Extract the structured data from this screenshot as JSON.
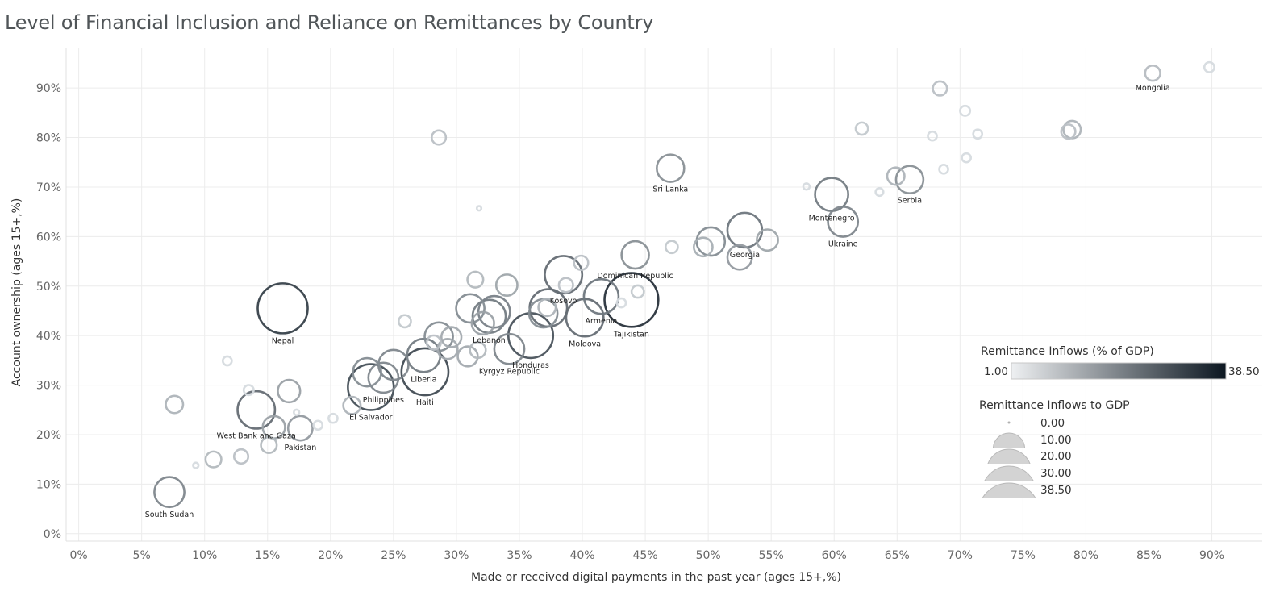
{
  "title": "Level of Financial Inclusion and Reliance on Remittances by Country",
  "chart_data": {
    "type": "scatter",
    "title": "Level of Financial Inclusion and Reliance on Remittances by Country",
    "xlabel": "Made or received digital payments in the past year (ages 15+,%)",
    "ylabel": "Account ownership (ages 15+,%)",
    "xlim": [
      -1,
      94
    ],
    "ylim": [
      -1.5,
      98
    ],
    "x_ticks": [
      "0%",
      "5%",
      "10%",
      "15%",
      "20%",
      "25%",
      "30%",
      "35%",
      "40%",
      "45%",
      "50%",
      "55%",
      "60%",
      "65%",
      "70%",
      "75%",
      "80%",
      "85%",
      "90%"
    ],
    "y_ticks": [
      "0%",
      "10%",
      "20%",
      "30%",
      "40%",
      "50%",
      "60%",
      "70%",
      "80%",
      "90%"
    ],
    "grid": true,
    "size_encoding": "Remittance Inflows (% of GDP)",
    "color_encoding": "Remittance Inflows (% of GDP)",
    "points": [
      {
        "label": "Mongolia",
        "x": 85.3,
        "y": 93.0,
        "r": 2.3
      },
      {
        "label": "Serbia",
        "x": 66.0,
        "y": 71.5,
        "r": 7.5
      },
      {
        "label": "Montenegro",
        "x": 59.8,
        "y": 68.5,
        "r": 11.0
      },
      {
        "label": "Ukraine",
        "x": 60.7,
        "y": 63.0,
        "r": 9.0
      },
      {
        "label": "Sri Lanka",
        "x": 47.0,
        "y": 73.8,
        "r": 7.5
      },
      {
        "label": "Georgia",
        "x": 52.9,
        "y": 61.3,
        "r": 12.0
      },
      {
        "label": "Dominican Republic",
        "x": 44.2,
        "y": 56.3,
        "r": 7.5
      },
      {
        "label": "Tajikistan",
        "x": 43.9,
        "y": 47.2,
        "r": 29.0
      },
      {
        "label": "Kosovo",
        "x": 38.5,
        "y": 52.3,
        "r": 14.0
      },
      {
        "label": "Armenia",
        "x": 41.5,
        "y": 47.9,
        "r": 12.0
      },
      {
        "label": "Moldova",
        "x": 40.2,
        "y": 43.6,
        "r": 14.0
      },
      {
        "label": "Honduras",
        "x": 35.9,
        "y": 40.0,
        "r": 20.0
      },
      {
        "label": "Lebanon",
        "x": 32.6,
        "y": 43.9,
        "r": 11.0
      },
      {
        "label": "Kyrgyz Republic",
        "x": 34.2,
        "y": 37.3,
        "r": 9.0
      },
      {
        "label": "Nepal",
        "x": 16.2,
        "y": 45.5,
        "r": 25.0
      },
      {
        "label": "Liberia",
        "x": 27.4,
        "y": 36.0,
        "r": 11.0
      },
      {
        "label": "Haiti",
        "x": 27.5,
        "y": 32.7,
        "r": 22.0
      },
      {
        "label": "Philippines",
        "x": 24.2,
        "y": 31.5,
        "r": 9.0
      },
      {
        "label": "El Salvador",
        "x": 23.2,
        "y": 29.6,
        "r": 21.0
      },
      {
        "label": "West Bank and Gaza",
        "x": 14.1,
        "y": 25.0,
        "r": 14.0
      },
      {
        "label": "Pakistan",
        "x": 17.6,
        "y": 21.3,
        "r": 6.0
      },
      {
        "label": "South Sudan",
        "x": 7.2,
        "y": 8.4,
        "r": 9.0
      },
      {
        "label": "",
        "x": 89.8,
        "y": 94.2,
        "r": 1.0
      },
      {
        "label": "",
        "x": 68.4,
        "y": 89.9,
        "r": 2.0
      },
      {
        "label": "",
        "x": 70.4,
        "y": 85.4,
        "r": 1.0
      },
      {
        "label": "",
        "x": 78.9,
        "y": 81.6,
        "r": 3.0
      },
      {
        "label": "",
        "x": 78.6,
        "y": 81.2,
        "r": 2.0
      },
      {
        "label": "",
        "x": 71.4,
        "y": 80.7,
        "r": 0.8
      },
      {
        "label": "",
        "x": 67.8,
        "y": 80.3,
        "r": 0.8
      },
      {
        "label": "",
        "x": 62.2,
        "y": 81.8,
        "r": 1.5
      },
      {
        "label": "",
        "x": 70.5,
        "y": 75.9,
        "r": 0.8
      },
      {
        "label": "",
        "x": 68.7,
        "y": 73.6,
        "r": 0.8
      },
      {
        "label": "",
        "x": 64.9,
        "y": 72.2,
        "r": 3.0
      },
      {
        "label": "",
        "x": 63.6,
        "y": 69.0,
        "r": 0.6
      },
      {
        "label": "",
        "x": 57.8,
        "y": 70.1,
        "r": 0.4
      },
      {
        "label": "",
        "x": 54.7,
        "y": 59.3,
        "r": 4.5
      },
      {
        "label": "",
        "x": 50.2,
        "y": 59.0,
        "r": 8.0
      },
      {
        "label": "",
        "x": 49.6,
        "y": 57.9,
        "r": 3.5
      },
      {
        "label": "",
        "x": 52.5,
        "y": 55.8,
        "r": 6.0
      },
      {
        "label": "",
        "x": 47.1,
        "y": 57.9,
        "r": 1.5
      },
      {
        "label": "",
        "x": 44.4,
        "y": 48.9,
        "r": 1.5
      },
      {
        "label": "",
        "x": 43.1,
        "y": 46.6,
        "r": 0.8
      },
      {
        "label": "",
        "x": 39.9,
        "y": 54.7,
        "r": 2.0
      },
      {
        "label": "",
        "x": 38.7,
        "y": 50.2,
        "r": 2.0
      },
      {
        "label": "",
        "x": 37.3,
        "y": 45.6,
        "r": 14.0
      },
      {
        "label": "",
        "x": 36.9,
        "y": 44.5,
        "r": 8.0
      },
      {
        "label": "",
        "x": 37.2,
        "y": 45.7,
        "r": 3.0
      },
      {
        "label": "",
        "x": 34.0,
        "y": 50.2,
        "r": 4.5
      },
      {
        "label": "",
        "x": 31.5,
        "y": 51.3,
        "r": 2.5
      },
      {
        "label": "",
        "x": 31.1,
        "y": 45.5,
        "r": 8.0
      },
      {
        "label": "",
        "x": 33.0,
        "y": 44.8,
        "r": 10.0
      },
      {
        "label": "",
        "x": 32.1,
        "y": 42.5,
        "r": 5.0
      },
      {
        "label": "",
        "x": 29.6,
        "y": 39.7,
        "r": 4.0
      },
      {
        "label": "",
        "x": 28.6,
        "y": 39.8,
        "r": 8.0
      },
      {
        "label": "",
        "x": 28.2,
        "y": 38.6,
        "r": 2.0
      },
      {
        "label": "",
        "x": 31.7,
        "y": 37.1,
        "r": 2.5
      },
      {
        "label": "",
        "x": 30.9,
        "y": 35.8,
        "r": 4.0
      },
      {
        "label": "",
        "x": 29.3,
        "y": 37.3,
        "r": 4.0
      },
      {
        "label": "",
        "x": 28.6,
        "y": 80.0,
        "r": 2.0
      },
      {
        "label": "",
        "x": 31.8,
        "y": 65.7,
        "r": 0.2
      },
      {
        "label": "",
        "x": 25.9,
        "y": 42.9,
        "r": 1.5
      },
      {
        "label": "",
        "x": 25.0,
        "y": 34.1,
        "r": 9.0
      },
      {
        "label": "",
        "x": 22.9,
        "y": 32.6,
        "r": 8.0
      },
      {
        "label": "",
        "x": 21.7,
        "y": 25.9,
        "r": 3.0
      },
      {
        "label": "",
        "x": 20.2,
        "y": 23.3,
        "r": 0.8
      },
      {
        "label": "",
        "x": 19.0,
        "y": 21.9,
        "r": 0.8
      },
      {
        "label": "",
        "x": 16.7,
        "y": 28.8,
        "r": 5.0
      },
      {
        "label": "",
        "x": 13.5,
        "y": 29.0,
        "r": 1.0
      },
      {
        "label": "",
        "x": 15.5,
        "y": 21.5,
        "r": 5.0
      },
      {
        "label": "",
        "x": 15.1,
        "y": 17.9,
        "r": 2.5
      },
      {
        "label": "",
        "x": 12.9,
        "y": 15.6,
        "r": 2.0
      },
      {
        "label": "",
        "x": 11.8,
        "y": 34.9,
        "r": 0.8
      },
      {
        "label": "",
        "x": 10.7,
        "y": 15.0,
        "r": 2.5
      },
      {
        "label": "",
        "x": 7.6,
        "y": 26.1,
        "r": 3.0
      },
      {
        "label": "",
        "x": 9.3,
        "y": 13.8,
        "r": 0.3
      },
      {
        "label": "",
        "x": 17.3,
        "y": 24.5,
        "r": 0.3
      }
    ],
    "color_legend": {
      "title": "Remittance Inflows (% of GDP)",
      "min_label": "1.00",
      "max_label": "38.50",
      "color_min": "#eef0f2",
      "color_max": "#0b1620"
    },
    "size_legend": {
      "title": "Remittance Inflows to GDP",
      "items": [
        {
          "label": "0.00",
          "value": 0
        },
        {
          "label": "10.00",
          "value": 10
        },
        {
          "label": "20.00",
          "value": 20
        },
        {
          "label": "30.00",
          "value": 30
        },
        {
          "label": "38.50",
          "value": 38.5
        }
      ]
    }
  }
}
